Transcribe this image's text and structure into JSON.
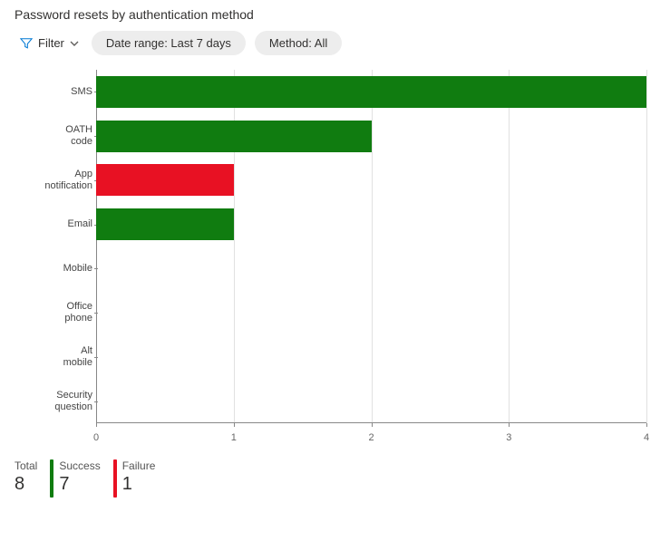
{
  "title": "Password resets by authentication method",
  "filter": {
    "label": "Filter",
    "pills": [
      {
        "text": "Date range: Last 7 days"
      },
      {
        "text": "Method: All"
      }
    ]
  },
  "chart": {
    "type": "bar-horizontal",
    "x_max": 4,
    "x_ticks": [
      0,
      1,
      2,
      3,
      4
    ],
    "gridline_color": "#e1e1e1",
    "axis_color": "#888888",
    "background_color": "#ffffff",
    "label_fontsize": 11,
    "categories": [
      {
        "label": "SMS",
        "success": 4,
        "failure": 0
      },
      {
        "label": "OATH\ncode",
        "success": 2,
        "failure": 0
      },
      {
        "label": "App\nnotification",
        "success": 0,
        "failure": 1
      },
      {
        "label": "Email",
        "success": 1,
        "failure": 0
      },
      {
        "label": "Mobile",
        "success": 0,
        "failure": 0
      },
      {
        "label": "Office\nphone",
        "success": 0,
        "failure": 0
      },
      {
        "label": "Alt\nmobile",
        "success": 0,
        "failure": 0
      },
      {
        "label": "Security\nquestion",
        "success": 0,
        "failure": 0
      }
    ],
    "colors": {
      "success": "#107c10",
      "failure": "#e81123"
    }
  },
  "summary": {
    "items": [
      {
        "label": "Total",
        "value": "8",
        "accent": null
      },
      {
        "label": "Success",
        "value": "7",
        "accent": "#107c10"
      },
      {
        "label": "Failure",
        "value": "1",
        "accent": "#e81123"
      }
    ]
  }
}
